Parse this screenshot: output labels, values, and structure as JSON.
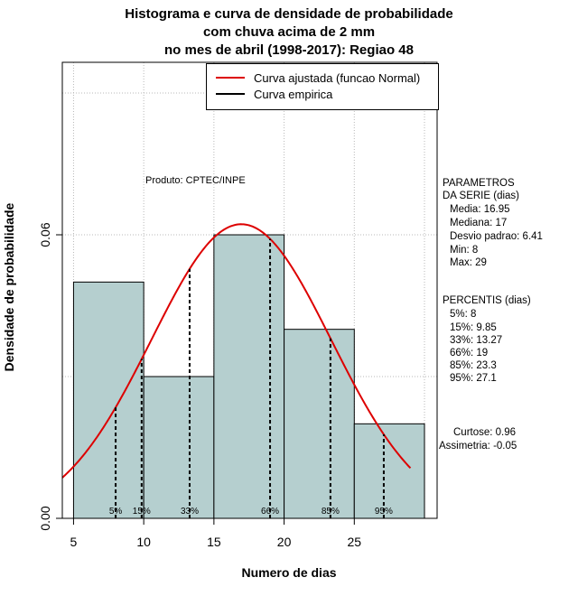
{
  "title_lines": [
    "Histograma e curva de densidade de probabilidade",
    "com chuva acima de 2 mm",
    "no mes de abril (1998-2017): Regiao 48"
  ],
  "produto": "Produto: CPTEC/INPE",
  "legend": {
    "fitted": {
      "label": "Curva ajustada (funcao Normal)",
      "color": "#dd0000"
    },
    "empirical": {
      "label": "Curva empirica",
      "color": "#000000"
    }
  },
  "parametros": {
    "heading1": "PARAMETROS",
    "heading2": "DA SERIE (dias)",
    "items": [
      "Media: 16.95",
      "Mediana: 17",
      "Desvio padrao: 6.41",
      "Min: 8",
      "Max: 29"
    ]
  },
  "percentis": {
    "heading": "PERCENTIS (dias)",
    "items": [
      "5%: 8",
      "15%: 9.85",
      "33%: 13.27",
      "66%: 19",
      "85%: 23.3",
      "95%: 27.1"
    ]
  },
  "stats": {
    "curtose": "Curtose: 0.96",
    "assimetria": "Assimetria: -0.05"
  },
  "chart_data": {
    "type": "bar",
    "title": "Histograma e curva de densidade de probabilidade com chuva acima de 2 mm no mes de abril (1998-2017): Regiao 48",
    "xlabel": "Numero de dias",
    "ylabel": "Densidade de probabilidade",
    "bins": [
      [
        5,
        10
      ],
      [
        10,
        15
      ],
      [
        15,
        20
      ],
      [
        20,
        25
      ],
      [
        25,
        30
      ]
    ],
    "values": [
      0.05,
      0.03,
      0.06,
      0.04,
      0.02
    ],
    "xlim": [
      4.2,
      30.9
    ],
    "ylim": [
      0,
      0.0965
    ],
    "xticks": [
      5,
      10,
      15,
      20,
      25
    ],
    "yticks": [
      0.0,
      0.06
    ],
    "ytick_labels": [
      "0.00",
      "0.06"
    ],
    "bar_color": "#b5cfcf",
    "normal_fit": {
      "mean": 16.95,
      "sd": 6.41,
      "x_range": [
        4.2,
        29
      ]
    },
    "percentile_lines": [
      {
        "label": "5%",
        "x": 8
      },
      {
        "label": "15%",
        "x": 9.85
      },
      {
        "label": "33%",
        "x": 13.27
      },
      {
        "label": "66%",
        "x": 19
      },
      {
        "label": "85%",
        "x": 23.3
      },
      {
        "label": "95%",
        "x": 27.1
      }
    ],
    "grid": true
  }
}
